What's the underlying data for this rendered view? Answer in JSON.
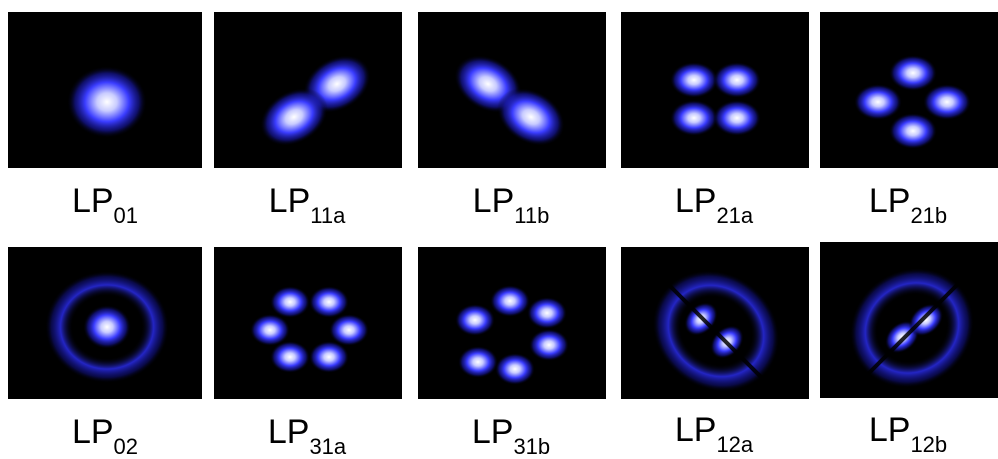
{
  "modes": [
    {
      "main": "LP",
      "sub": "01",
      "pattern": "lp01"
    },
    {
      "main": "LP",
      "sub": "11a",
      "pattern": "lp11a"
    },
    {
      "main": "LP",
      "sub": "11b",
      "pattern": "lp11b"
    },
    {
      "main": "LP",
      "sub": "21a",
      "pattern": "lp21a"
    },
    {
      "main": "LP",
      "sub": "21b",
      "pattern": "lp21b"
    },
    {
      "main": "LP",
      "sub": "02",
      "pattern": "lp02"
    },
    {
      "main": "LP",
      "sub": "31a",
      "pattern": "lp31a"
    },
    {
      "main": "LP",
      "sub": "31b",
      "pattern": "lp31b"
    },
    {
      "main": "LP",
      "sub": "12a",
      "pattern": "lp12a"
    },
    {
      "main": "LP",
      "sub": "12b",
      "pattern": "lp12b"
    }
  ],
  "colors": {
    "background": "#000000",
    "mode": "#3a3cff",
    "core": "#ffffff"
  }
}
